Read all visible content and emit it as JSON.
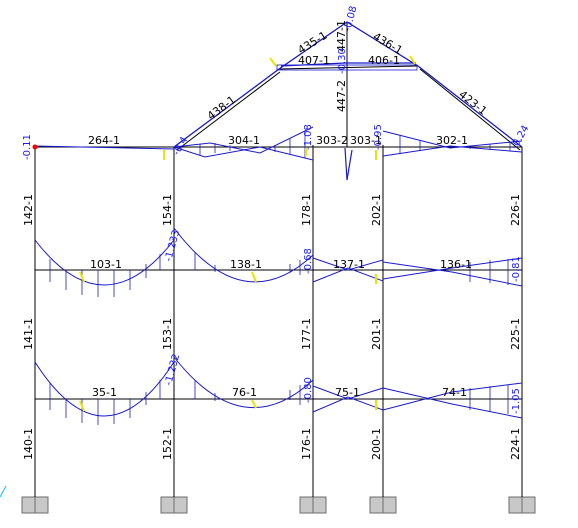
{
  "colors": {
    "member": "#000000",
    "diagram": "#1a1acc",
    "hatch": "#1a1acc",
    "support_fill": "#c8c8c8",
    "support_stroke": "#6e6e6e",
    "value_negative": "#1a1aff",
    "value_positive": "#e6e600",
    "node_marker": "#ff0000"
  },
  "members": {
    "roof_beam_left": "264-1",
    "roof_beam_2": "304-1",
    "roof_beam_3": "303-2",
    "roof_beam_4": "303-1",
    "roof_beam_right": "302-1",
    "truss_diag_left": "438-1",
    "truss_top_left": "435-1",
    "truss_top_right": "436-1",
    "truss_tie_left": "407-1",
    "truss_tie_right": "406-1",
    "truss_diag_right": "423-1",
    "truss_vertical": "447-2",
    "truss_king_post": "447-1",
    "floor2_bay1": "103-1",
    "floor2_bay2": "138-1",
    "floor2_bay3": "137-1",
    "floor2_bay4": "136-1",
    "floor1_bay1": "35-1",
    "floor1_bay2": "76-1",
    "floor1_bay3": "75-1",
    "floor1_bay4": "74-1",
    "col_a_top": "142-1",
    "col_a_mid": "141-1",
    "col_a_bot": "140-1",
    "col_b_top": "154-1",
    "col_b_mid": "153-1",
    "col_b_bot": "152-1",
    "col_c_top": "178-1",
    "col_c_mid": "177-1",
    "col_c_bot": "176-1",
    "col_d_top": "202-1",
    "col_d_mid": "201-1",
    "col_d_bot": "200-1",
    "col_e_top": "226-1",
    "col_e_mid": "225-1",
    "col_e_bot": "224-1"
  },
  "values": {
    "roof_left_end": "-0.11",
    "roof_b": "-0.4",
    "roof_c": "-1.08",
    "roof_d": "-0.95",
    "roof_e": "-0.24",
    "apex": "-0.08",
    "tie_mid": "-0.30",
    "floor2_b": "-1.233",
    "floor2_c": "-0.68",
    "floor2_e": "-0.81",
    "floor1_b": "-1.232",
    "floor1_c": "-0.80",
    "floor1_e": "-1.05"
  }
}
